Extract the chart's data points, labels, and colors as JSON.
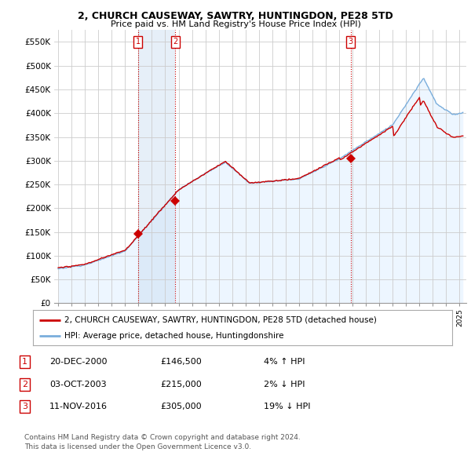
{
  "title": "2, CHURCH CAUSEWAY, SAWTRY, HUNTINGDON, PE28 5TD",
  "subtitle": "Price paid vs. HM Land Registry's House Price Index (HPI)",
  "ylim": [
    0,
    575000
  ],
  "yticks": [
    0,
    50000,
    100000,
    150000,
    200000,
    250000,
    300000,
    350000,
    400000,
    450000,
    500000,
    550000
  ],
  "ytick_labels": [
    "£0",
    "£50K",
    "£100K",
    "£150K",
    "£200K",
    "£250K",
    "£300K",
    "£350K",
    "£400K",
    "£450K",
    "£500K",
    "£550K"
  ],
  "sales": [
    {
      "date": "2000-12-20",
      "price": 146500,
      "label": "1",
      "x": 2000.97
    },
    {
      "date": "2003-10-03",
      "price": 215000,
      "label": "2",
      "x": 2003.75
    },
    {
      "date": "2016-11-11",
      "price": 305000,
      "label": "3",
      "x": 2016.86
    }
  ],
  "legend_line1": "2, CHURCH CAUSEWAY, SAWTRY, HUNTINGDON, PE28 5TD (detached house)",
  "legend_line2": "HPI: Average price, detached house, Huntingdonshire",
  "table": [
    {
      "num": "1",
      "date": "20-DEC-2000",
      "price": "£146,500",
      "change": "4% ↑ HPI"
    },
    {
      "num": "2",
      "date": "03-OCT-2003",
      "price": "£215,000",
      "change": "2% ↓ HPI"
    },
    {
      "num": "3",
      "date": "11-NOV-2016",
      "price": "£305,000",
      "change": "19% ↓ HPI"
    }
  ],
  "footnote1": "Contains HM Land Registry data © Crown copyright and database right 2024.",
  "footnote2": "This data is licensed under the Open Government Licence v3.0.",
  "red_color": "#cc0000",
  "blue_color": "#7aaedc",
  "blue_fill": "#ddeeff",
  "shade_between": "#ddeeff",
  "grid_color": "#cccccc",
  "bg_color": "#ffffff"
}
